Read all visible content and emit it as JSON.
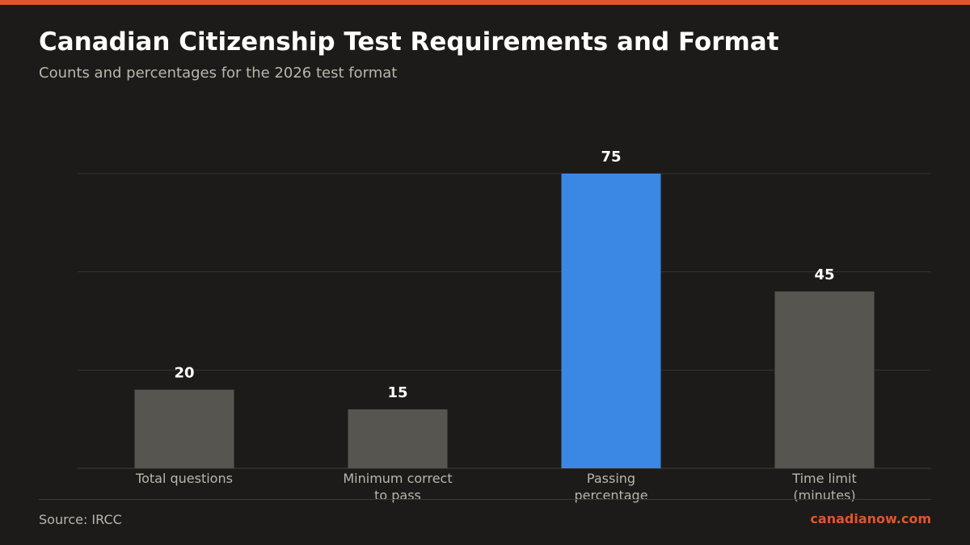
{
  "header": {
    "title": "Canadian Citizenship Test Requirements and Format",
    "subtitle": "Counts and percentages for the 2026 test format"
  },
  "footer": {
    "source": "Source: IRCC",
    "brand": "canadianow.com"
  },
  "colors": {
    "accent": "#e0562a",
    "bar_default": "#57554f",
    "bar_highlight": "#3a87e4",
    "background": "#1c1b19"
  },
  "chart_data": {
    "type": "bar",
    "title": "Canadian Citizenship Test Requirements and Format",
    "subtitle": "Counts and percentages for the 2026 test format",
    "xlabel": "",
    "ylabel": "",
    "categories": [
      [
        "Total questions"
      ],
      [
        "Minimum correct",
        "to pass"
      ],
      [
        "Passing",
        "percentage"
      ],
      [
        "Time limit",
        "(minutes)"
      ]
    ],
    "values": [
      20,
      15,
      75,
      45
    ],
    "highlight_index": 2,
    "ylim": [
      0,
      75
    ],
    "y_gridlines": [
      0,
      25,
      50,
      75
    ],
    "grid": true,
    "legend": "none"
  }
}
